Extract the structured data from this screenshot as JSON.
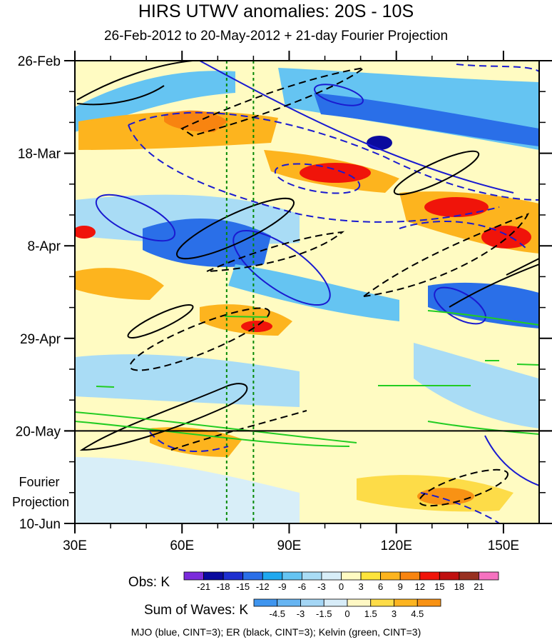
{
  "chart_data": {
    "type": "heatmap",
    "title": "HIRS UTWV anomalies: 20S - 10S",
    "subtitle": "26-Feb-2012 to 20-May-2012 + 21-day Fourier Projection",
    "x_ticks": [
      "30E",
      "60E",
      "90E",
      "120E",
      "150E"
    ],
    "x_tick_values": [
      30,
      60,
      90,
      120,
      150
    ],
    "xlim": [
      30,
      160
    ],
    "y_ticks": [
      "26-Feb",
      "18-Mar",
      "8-Apr",
      "29-Apr",
      "20-May",
      "10-Jun"
    ],
    "y_tick_days": [
      0,
      21,
      42,
      63,
      84,
      105
    ],
    "ylim_days": [
      0,
      105
    ],
    "projection_start_day": 84,
    "projection_label_line1": "Fourier",
    "projection_label_line2": "Projection",
    "reference_longitudes": [
      72.5,
      80
    ],
    "obs_colorbar": {
      "label": "Obs: K",
      "levels": [
        "-21",
        "-18",
        "-15",
        "-12",
        "-9",
        "-6",
        "-3",
        "0",
        "3",
        "6",
        "9",
        "12",
        "15",
        "18",
        "21"
      ],
      "colors": [
        "#7b2bdb",
        "#0a0a9e",
        "#1e2fd0",
        "#2a6fe8",
        "#1fa8ef",
        "#65c4f2",
        "#a9dcf5",
        "#d8eef8",
        "#fffbc2",
        "#fde43c",
        "#fdb41e",
        "#f88410",
        "#f0140a",
        "#c01010",
        "#983020",
        "#f672c0"
      ]
    },
    "waves_colorbar": {
      "label": "Sum of Waves: K",
      "levels": [
        "-4.5",
        "-3",
        "-1.5",
        "0",
        "1.5",
        "3",
        "4.5"
      ],
      "colors": [
        "#3f95ef",
        "#67b5f2",
        "#a4d6f5",
        "#d7ecf8",
        "#fff8c4",
        "#fddc48",
        "#fcb420",
        "#f89214"
      ]
    },
    "footnote": "MJO (blue, CINT=3); ER (black, CINT=3); Kelvin (green, CINT=3)",
    "colors": {
      "mjo": "#1a1ad0",
      "er": "#000000",
      "kelvin": "#22cc22",
      "reference_line": "#008800"
    }
  }
}
